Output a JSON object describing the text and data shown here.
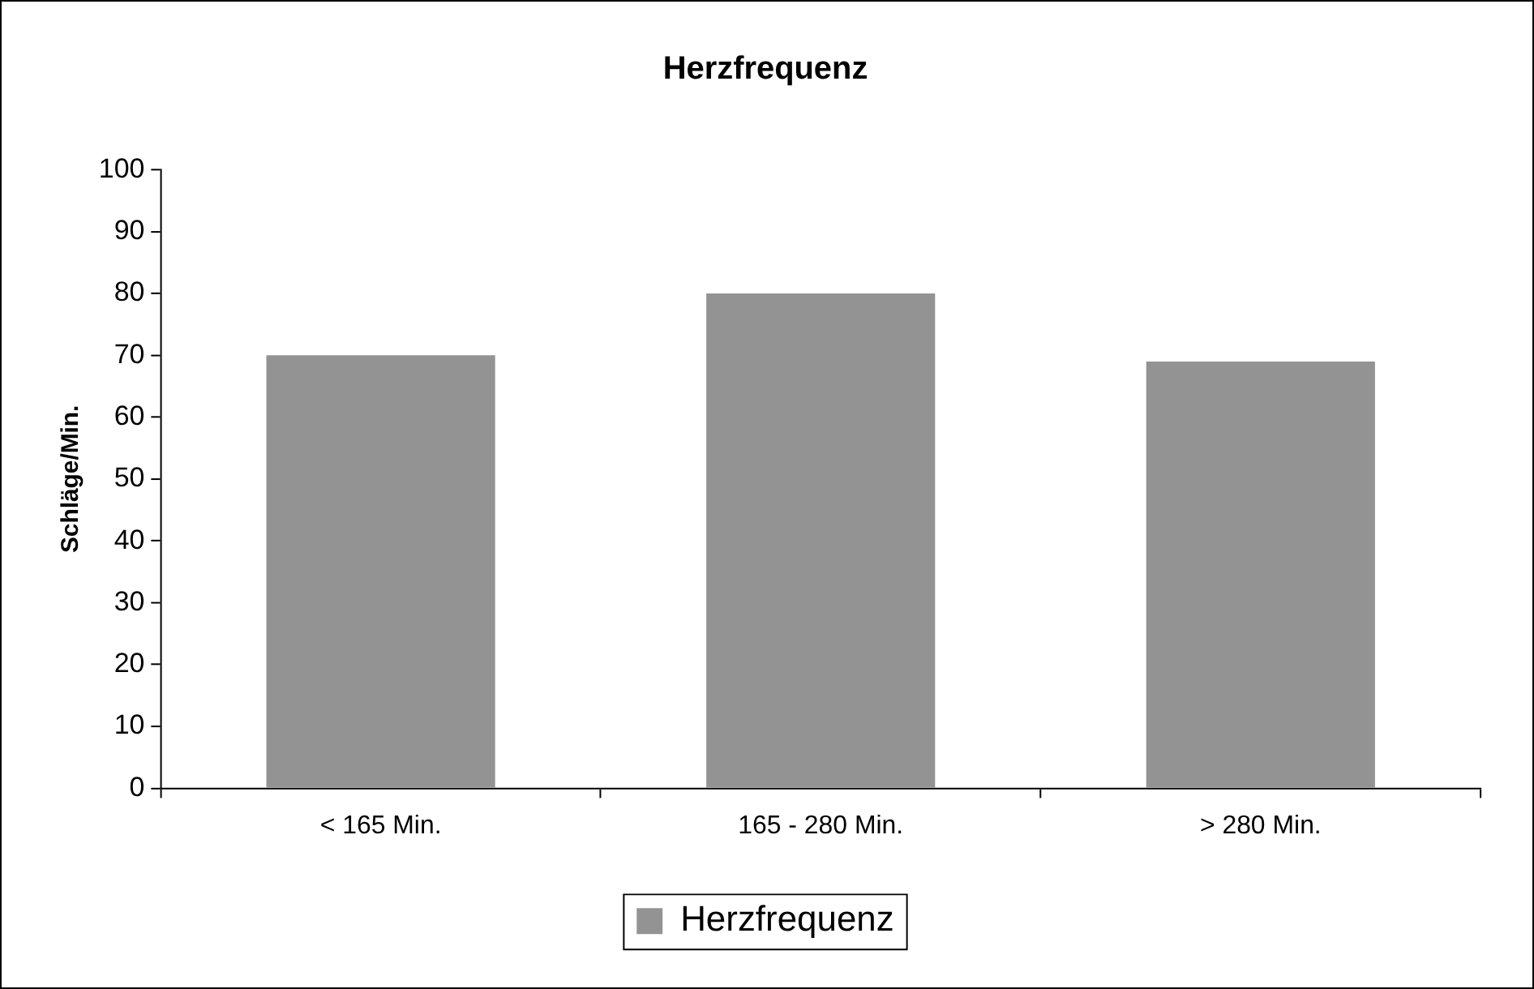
{
  "chart_data": {
    "type": "bar",
    "title": "Herzfrequenz",
    "ylabel": "Schläge/Min.",
    "categories": [
      "< 165 Min.",
      "165 - 280 Min.",
      "> 280 Min."
    ],
    "series": [
      {
        "name": "Herzfrequenz",
        "color": "#939393",
        "values": [
          70,
          80,
          69
        ]
      }
    ],
    "ylim": [
      0,
      100
    ],
    "yticks": [
      0,
      10,
      20,
      30,
      40,
      50,
      60,
      70,
      80,
      90,
      100
    ],
    "grid": false,
    "legend": "bottom"
  }
}
